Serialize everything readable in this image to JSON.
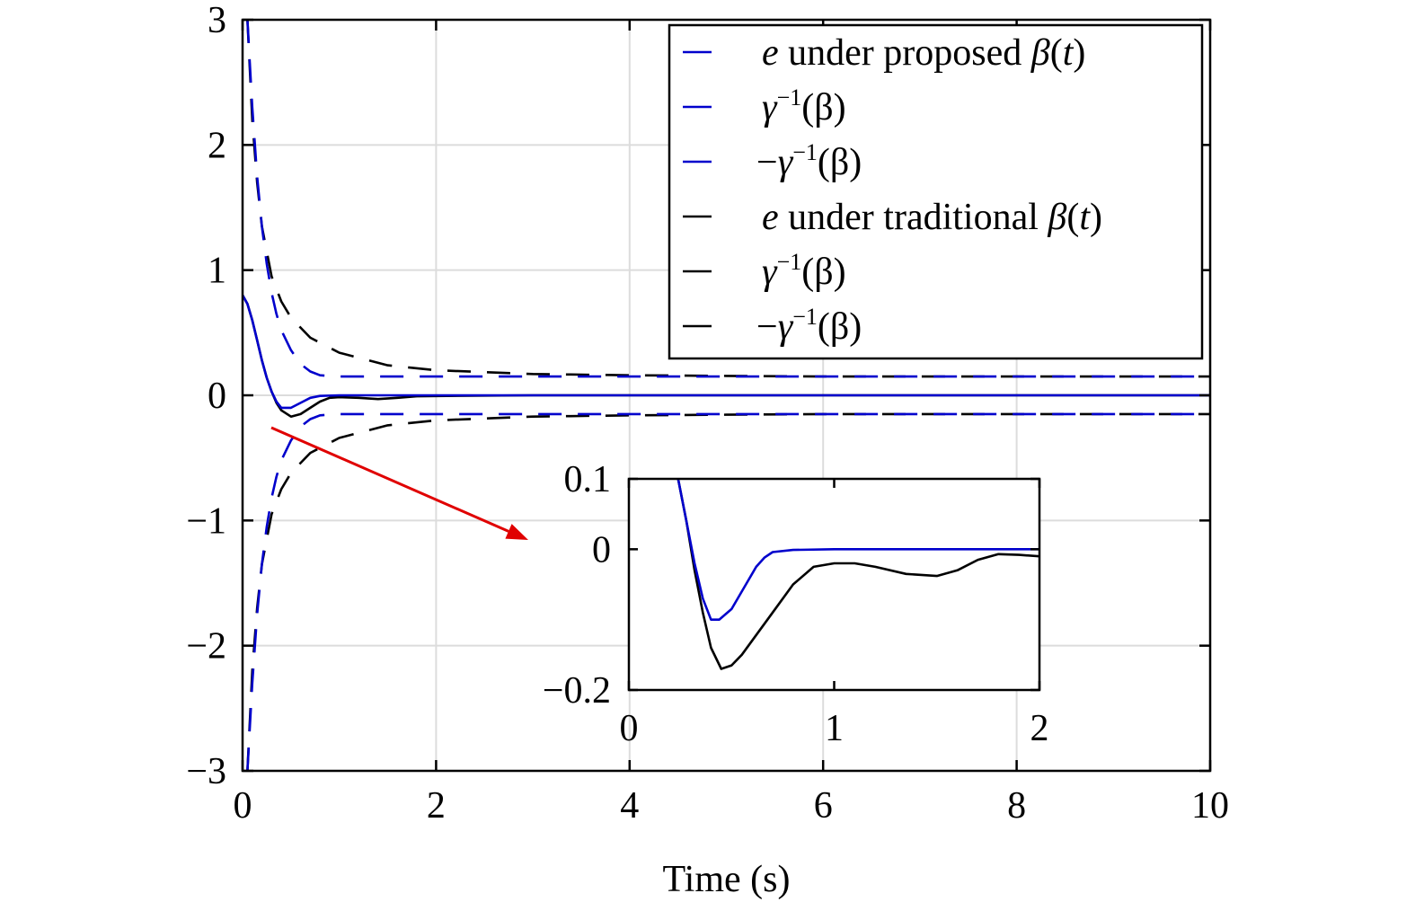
{
  "chart_data": [
    {
      "type": "line",
      "xlabel": "Time (s)",
      "ylabel": "",
      "xlim": [
        0,
        10
      ],
      "ylim": [
        -3,
        3
      ],
      "xticks": [
        "0",
        "2",
        "4",
        "6",
        "8",
        "10"
      ],
      "yticks": [
        "3",
        "2",
        "1",
        "0",
        "−1",
        "−2",
        "−3"
      ],
      "grid": true,
      "legend_position": "top-right",
      "series": [
        {
          "name": "e under proposed β(t)",
          "color": "#0000cc",
          "style": "solid",
          "x": [
            0,
            0.05,
            0.1,
            0.15,
            0.2,
            0.25,
            0.3,
            0.35,
            0.4,
            0.5,
            0.6,
            0.7,
            0.8,
            1.0,
            1.5,
            2,
            4,
            6,
            8,
            10
          ],
          "y": [
            0.8,
            0.73,
            0.6,
            0.44,
            0.28,
            0.14,
            0.03,
            -0.05,
            -0.1,
            -0.1,
            -0.06,
            -0.02,
            -0.005,
            0,
            0,
            0,
            0,
            0,
            0,
            0
          ]
        },
        {
          "name": "γ⁻¹(β)",
          "color": "#0000cc",
          "style": "dashed",
          "x": [
            0.05,
            0.1,
            0.15,
            0.2,
            0.25,
            0.3,
            0.35,
            0.4,
            0.5,
            0.6,
            0.7,
            0.8,
            1,
            2,
            4,
            6,
            8,
            10
          ],
          "y": [
            3.0,
            2.3,
            1.75,
            1.35,
            1.05,
            0.82,
            0.65,
            0.52,
            0.36,
            0.25,
            0.19,
            0.16,
            0.15,
            0.15,
            0.15,
            0.15,
            0.15,
            0.15
          ]
        },
        {
          "name": "−γ⁻¹(β)",
          "color": "#0000cc",
          "style": "dashed",
          "x": [
            0.05,
            0.1,
            0.15,
            0.2,
            0.25,
            0.3,
            0.35,
            0.4,
            0.5,
            0.6,
            0.7,
            0.8,
            1,
            2,
            4,
            6,
            8,
            10
          ],
          "y": [
            -3.0,
            -2.3,
            -1.75,
            -1.35,
            -1.05,
            -0.82,
            -0.65,
            -0.52,
            -0.36,
            -0.25,
            -0.19,
            -0.16,
            -0.15,
            -0.15,
            -0.15,
            -0.15,
            -0.15,
            -0.15
          ]
        },
        {
          "name": "e under traditional β(t)",
          "color": "#000000",
          "style": "solid",
          "x": [
            0,
            0.05,
            0.1,
            0.15,
            0.2,
            0.25,
            0.3,
            0.35,
            0.4,
            0.5,
            0.6,
            0.7,
            0.8,
            0.9,
            1.0,
            1.2,
            1.4,
            1.6,
            1.8,
            2.0,
            3,
            4,
            6,
            8,
            10
          ],
          "y": [
            0.8,
            0.73,
            0.6,
            0.44,
            0.28,
            0.14,
            0.03,
            -0.06,
            -0.12,
            -0.17,
            -0.15,
            -0.1,
            -0.05,
            -0.02,
            -0.015,
            -0.02,
            -0.03,
            -0.02,
            -0.008,
            -0.006,
            0,
            0,
            0,
            0,
            0
          ]
        },
        {
          "name": "γ⁻¹(β)",
          "color": "#000000",
          "style": "dashed",
          "x": [
            0.05,
            0.1,
            0.15,
            0.2,
            0.3,
            0.4,
            0.5,
            0.7,
            1.0,
            1.5,
            2,
            3,
            4,
            5,
            6,
            8,
            10
          ],
          "y": [
            3.0,
            2.2,
            1.7,
            1.35,
            0.95,
            0.75,
            0.62,
            0.46,
            0.34,
            0.24,
            0.2,
            0.17,
            0.16,
            0.155,
            0.15,
            0.15,
            0.15
          ]
        },
        {
          "name": "−γ⁻¹(β)",
          "color": "#000000",
          "style": "dashed",
          "x": [
            0.05,
            0.1,
            0.15,
            0.2,
            0.3,
            0.4,
            0.5,
            0.7,
            1.0,
            1.5,
            2,
            3,
            4,
            5,
            6,
            8,
            10
          ],
          "y": [
            -3.0,
            -2.2,
            -1.7,
            -1.35,
            -0.95,
            -0.75,
            -0.62,
            -0.46,
            -0.34,
            -0.24,
            -0.2,
            -0.17,
            -0.16,
            -0.155,
            -0.15,
            -0.15,
            -0.15
          ]
        }
      ]
    },
    {
      "type": "line",
      "xlim": [
        0,
        2
      ],
      "ylim": [
        -0.2,
        0.1
      ],
      "xticks": [
        "0",
        "1",
        "2"
      ],
      "yticks": [
        "0.1",
        "0",
        "−0.2"
      ],
      "grid": false,
      "series": [
        {
          "color": "#0000cc",
          "style": "solid",
          "x": [
            0.24,
            0.28,
            0.32,
            0.36,
            0.4,
            0.44,
            0.5,
            0.56,
            0.62,
            0.66,
            0.7,
            0.8,
            1.0,
            1.5,
            2.0
          ],
          "y": [
            0.1,
            0.04,
            -0.02,
            -0.07,
            -0.1,
            -0.1,
            -0.085,
            -0.055,
            -0.025,
            -0.012,
            -0.004,
            -0.001,
            0,
            0,
            0
          ]
        },
        {
          "color": "#000000",
          "style": "solid",
          "x": [
            0.24,
            0.28,
            0.32,
            0.36,
            0.4,
            0.45,
            0.5,
            0.55,
            0.6,
            0.7,
            0.8,
            0.9,
            1.0,
            1.1,
            1.2,
            1.35,
            1.5,
            1.6,
            1.7,
            1.8,
            1.9,
            2.0
          ],
          "y": [
            0.1,
            0.04,
            -0.03,
            -0.09,
            -0.14,
            -0.17,
            -0.165,
            -0.15,
            -0.13,
            -0.09,
            -0.05,
            -0.025,
            -0.02,
            -0.02,
            -0.025,
            -0.035,
            -0.038,
            -0.03,
            -0.015,
            -0.007,
            -0.008,
            -0.01
          ]
        }
      ]
    }
  ],
  "legend": [
    {
      "color": "#0000cc",
      "style": "solid",
      "pre": "e",
      "post": " under proposed ",
      "math": "β",
      "tail": "(t)"
    },
    {
      "color": "#0000cc",
      "style": "dashed",
      "sign": "",
      "label": "γ",
      "sup": "−1",
      "arg": "(β)"
    },
    {
      "color": "#0000cc",
      "style": "dashed",
      "sign": "−",
      "label": "γ",
      "sup": "−1",
      "arg": "(β)"
    },
    {
      "color": "#000000",
      "style": "solid",
      "pre": "e",
      "post": " under traditional ",
      "math": "β",
      "tail": "(t)"
    },
    {
      "color": "#000000",
      "style": "dashed",
      "sign": "",
      "label": "γ",
      "sup": "−1",
      "arg": "(β)"
    },
    {
      "color": "#000000",
      "style": "dashed",
      "sign": "−",
      "label": "γ",
      "sup": "−1",
      "arg": "(β)"
    }
  ]
}
